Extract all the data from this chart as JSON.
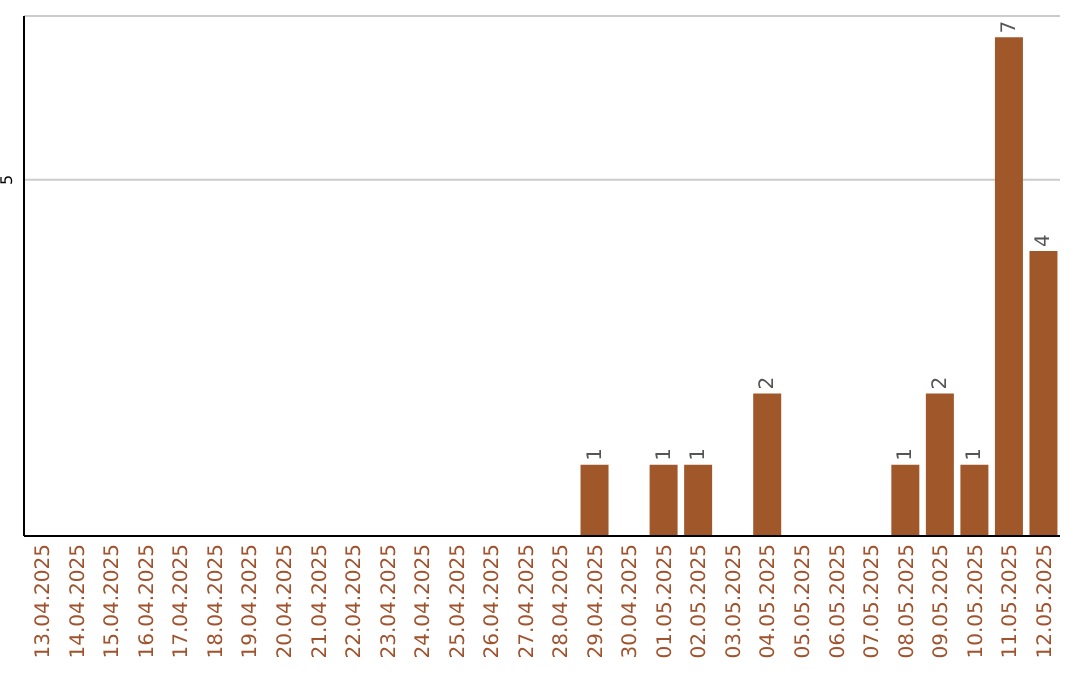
{
  "chart_data": {
    "type": "bar",
    "categories": [
      "13.04.2025",
      "14.04.2025",
      "15.04.2025",
      "16.04.2025",
      "17.04.2025",
      "18.04.2025",
      "19.04.2025",
      "20.04.2025",
      "21.04.2025",
      "22.04.2025",
      "23.04.2025",
      "24.04.2025",
      "25.04.2025",
      "26.04.2025",
      "27.04.2025",
      "28.04.2025",
      "29.04.2025",
      "30.04.2025",
      "01.05.2025",
      "02.05.2025",
      "03.05.2025",
      "04.05.2025",
      "05.05.2025",
      "06.05.2025",
      "07.05.2025",
      "08.05.2025",
      "09.05.2025",
      "10.05.2025",
      "11.05.2025",
      "12.05.2025"
    ],
    "values": [
      null,
      null,
      null,
      null,
      null,
      null,
      null,
      null,
      null,
      null,
      null,
      null,
      null,
      null,
      null,
      null,
      1,
      null,
      1,
      1,
      null,
      2,
      null,
      null,
      null,
      1,
      2,
      1,
      7,
      4
    ],
    "data_labels": true,
    "color": "#a0582a",
    "ylim": [
      0,
      7.3
    ],
    "yticks": [
      5
    ],
    "grid": "y"
  }
}
